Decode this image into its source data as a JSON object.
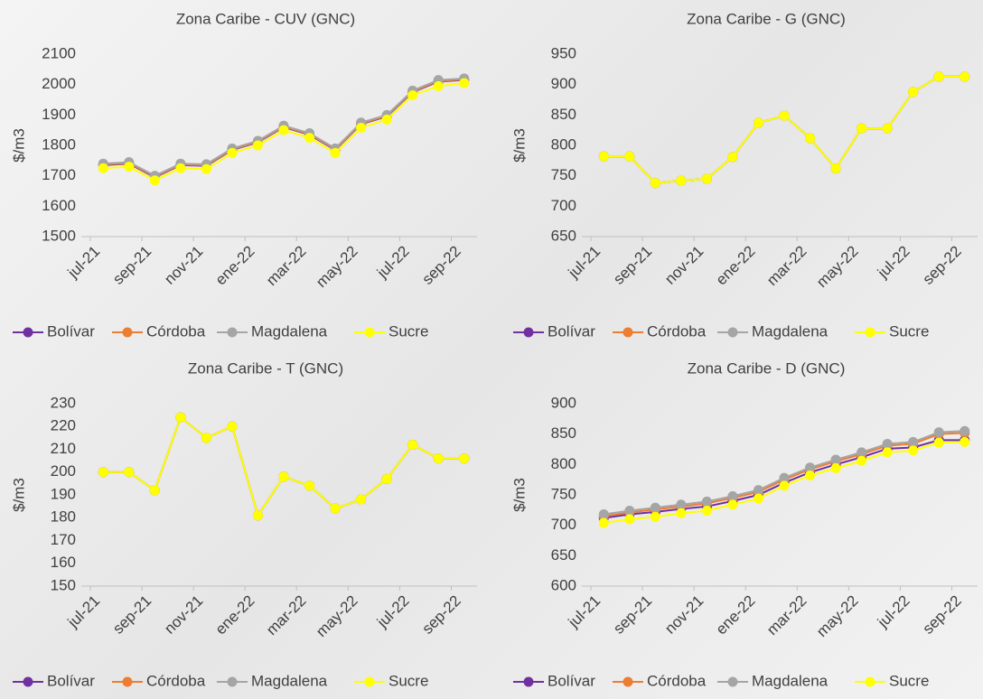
{
  "chart_data": [
    {
      "type": "line",
      "title": "Zona Caribe - CUV (GNC)",
      "ylabel": "$/m3",
      "categories": [
        "jul-21",
        null,
        "sep-21",
        null,
        "nov-21",
        null,
        "ene-22",
        null,
        "mar-22",
        null,
        "may-22",
        null,
        "jul-22",
        null,
        "sep-22"
      ],
      "ylim": [
        1500,
        2100
      ],
      "yticks": [
        1500,
        1600,
        1700,
        1800,
        1900,
        2000,
        2100
      ],
      "series": [
        {
          "name": "Bolívar",
          "color": "#7030a0",
          "values": [
            1735,
            1740,
            1695,
            1735,
            1733,
            1785,
            1810,
            1860,
            1835,
            1785,
            1870,
            1895,
            1975,
            2010,
            2015
          ]
        },
        {
          "name": "Córdoba",
          "color": "#ed7d31",
          "values": [
            1737,
            1742,
            1697,
            1737,
            1735,
            1787,
            1812,
            1862,
            1837,
            1787,
            1872,
            1897,
            1977,
            2012,
            2017
          ]
        },
        {
          "name": "Magdalena",
          "color": "#a5a5a5",
          "values": [
            1740,
            1745,
            1700,
            1740,
            1738,
            1790,
            1815,
            1865,
            1840,
            1790,
            1875,
            1900,
            1980,
            2015,
            2020
          ]
        },
        {
          "name": "Sucre",
          "color": "#ffff00",
          "values": [
            1725,
            1730,
            1685,
            1725,
            1722,
            1775,
            1800,
            1850,
            1825,
            1775,
            1858,
            1885,
            1965,
            1995,
            2005
          ]
        }
      ]
    },
    {
      "type": "line",
      "title": "Zona Caribe - G (GNC)",
      "ylabel": "$/m3",
      "categories": [
        "jul-21",
        null,
        "sep-21",
        null,
        "nov-21",
        null,
        "ene-22",
        null,
        "mar-22",
        null,
        "may-22",
        null,
        "jul-22",
        null,
        "sep-22"
      ],
      "ylim": [
        650,
        950
      ],
      "yticks": [
        650,
        700,
        750,
        800,
        850,
        900,
        950
      ],
      "series": [
        {
          "name": "Bolívar",
          "color": "#7030a0",
          "values": [
            782,
            782,
            738,
            742,
            745,
            781,
            837,
            849,
            812,
            762,
            828,
            828,
            888,
            913,
            913
          ]
        },
        {
          "name": "Córdoba",
          "color": "#ed7d31",
          "values": [
            782,
            782,
            738,
            742,
            745,
            781,
            837,
            849,
            812,
            762,
            828,
            828,
            888,
            913,
            913
          ]
        },
        {
          "name": "Magdalena",
          "color": "#a5a5a5",
          "values": [
            782,
            782,
            738,
            742,
            745,
            781,
            837,
            849,
            812,
            762,
            828,
            828,
            888,
            913,
            913
          ]
        },
        {
          "name": "Sucre",
          "color": "#ffff00",
          "values": [
            782,
            782,
            738,
            742,
            745,
            781,
            837,
            849,
            812,
            762,
            828,
            828,
            888,
            913,
            913
          ]
        }
      ]
    },
    {
      "type": "line",
      "title": "Zona Caribe - T (GNC)",
      "ylabel": "$/m3",
      "categories": [
        "jul-21",
        null,
        "sep-21",
        null,
        "nov-21",
        null,
        "ene-22",
        null,
        "mar-22",
        null,
        "may-22",
        null,
        "jul-22",
        null,
        "sep-22"
      ],
      "ylim": [
        150,
        230
      ],
      "yticks": [
        150,
        160,
        170,
        180,
        190,
        200,
        210,
        220,
        230
      ],
      "series": [
        {
          "name": "Bolívar",
          "color": "#7030a0",
          "values": [
            200,
            200,
            192,
            224,
            215,
            220,
            181,
            198,
            194,
            184,
            188,
            197,
            212,
            206,
            206
          ]
        },
        {
          "name": "Córdoba",
          "color": "#ed7d31",
          "values": [
            200,
            200,
            192,
            224,
            215,
            220,
            181,
            198,
            194,
            184,
            188,
            197,
            212,
            206,
            206
          ]
        },
        {
          "name": "Magdalena",
          "color": "#a5a5a5",
          "values": [
            200,
            200,
            192,
            224,
            215,
            220,
            181,
            198,
            194,
            184,
            188,
            197,
            212,
            206,
            206
          ]
        },
        {
          "name": "Sucre",
          "color": "#ffff00",
          "values": [
            200,
            200,
            192,
            224,
            215,
            220,
            181,
            198,
            194,
            184,
            188,
            197,
            212,
            206,
            206
          ]
        }
      ]
    },
    {
      "type": "line",
      "title": "Zona Caribe - D (GNC)",
      "ylabel": "$/m3",
      "categories": [
        "jul-21",
        null,
        "sep-21",
        null,
        "nov-21",
        null,
        "ene-22",
        null,
        "mar-22",
        null,
        "may-22",
        null,
        "jul-22",
        null,
        "sep-22"
      ],
      "ylim": [
        600,
        900
      ],
      "yticks": [
        600,
        650,
        700,
        750,
        800,
        850,
        900
      ],
      "series": [
        {
          "name": "Bolívar",
          "color": "#7030a0",
          "values": [
            712,
            718,
            722,
            727,
            731,
            740,
            750,
            770,
            787,
            800,
            812,
            826,
            828,
            840,
            840
          ]
        },
        {
          "name": "Córdoba",
          "color": "#ed7d31",
          "values": [
            715,
            721,
            726,
            731,
            736,
            745,
            755,
            775,
            792,
            805,
            817,
            831,
            834,
            850,
            852
          ]
        },
        {
          "name": "Magdalena",
          "color": "#a5a5a5",
          "values": [
            718,
            724,
            729,
            734,
            739,
            748,
            758,
            778,
            795,
            808,
            820,
            834,
            837,
            853,
            855
          ]
        },
        {
          "name": "Sucre",
          "color": "#ffff00",
          "values": [
            704,
            710,
            714,
            720,
            724,
            734,
            744,
            765,
            782,
            794,
            806,
            820,
            823,
            836,
            837
          ]
        }
      ]
    }
  ]
}
